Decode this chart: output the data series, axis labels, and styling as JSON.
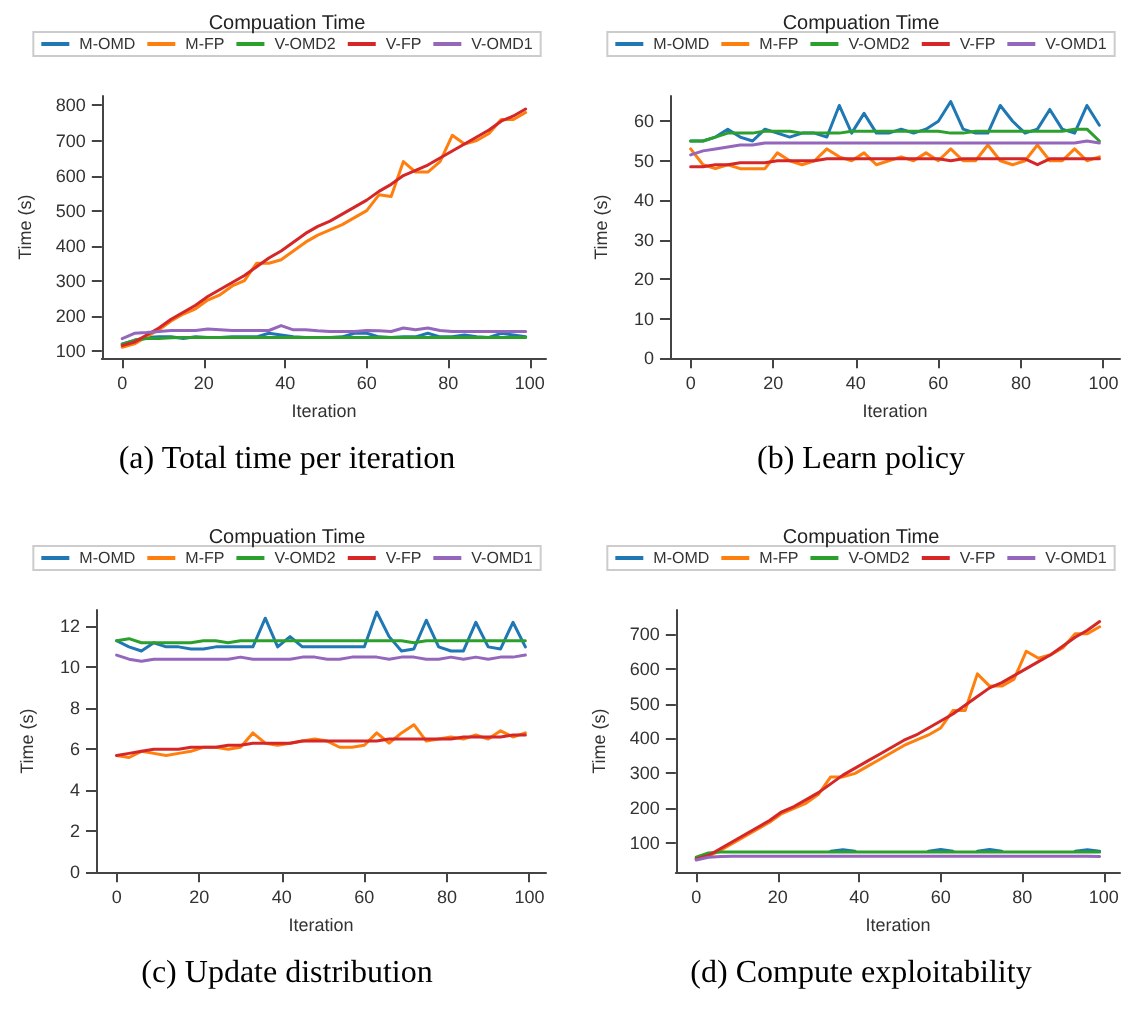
{
  "chart_data": [
    {
      "type": "line",
      "title": "Compuation Time",
      "xlabel": "Iteration",
      "ylabel": "Time (s)",
      "annotations": [
        "(a) Total time per iteration"
      ],
      "legend": "top",
      "grid": false,
      "marker": "none",
      "line_style": "solid",
      "xlim": [
        -5,
        104
      ],
      "xticks": [
        0,
        20,
        40,
        60,
        80,
        100
      ],
      "ylim": [
        79,
        827
      ],
      "yticks": [
        100,
        200,
        300,
        400,
        500,
        600,
        700,
        800
      ],
      "x": [
        0,
        3,
        6,
        9,
        12,
        15,
        18,
        21,
        24,
        27,
        30,
        33,
        36,
        39,
        42,
        45,
        48,
        51,
        54,
        57,
        60,
        63,
        66,
        69,
        72,
        75,
        78,
        81,
        84,
        87,
        90,
        93,
        96,
        99
      ],
      "series": [
        {
          "name": "M-OMD",
          "color": "#1f77b4",
          "values": [
            120,
            130,
            138,
            140,
            140,
            135,
            140,
            138,
            138,
            140,
            140,
            140,
            150,
            145,
            140,
            138,
            138,
            138,
            140,
            150,
            150,
            140,
            138,
            140,
            140,
            150,
            140,
            140,
            145,
            140,
            138,
            150,
            145,
            140
          ]
        },
        {
          "name": "M-FP",
          "color": "#ff7f0e",
          "values": [
            110,
            120,
            140,
            160,
            185,
            205,
            220,
            245,
            260,
            285,
            300,
            350,
            350,
            360,
            385,
            410,
            430,
            445,
            460,
            480,
            500,
            545,
            540,
            640,
            610,
            610,
            640,
            715,
            690,
            700,
            720,
            760,
            760,
            780
          ]
        },
        {
          "name": "V-OMD2",
          "color": "#2ca02c",
          "values": [
            118,
            130,
            135,
            135,
            137,
            138,
            138,
            138,
            138,
            138,
            138,
            138,
            138,
            138,
            138,
            138,
            138,
            138,
            138,
            138,
            138,
            138,
            138,
            138,
            138,
            138,
            138,
            138,
            138,
            138,
            138,
            138,
            138,
            138
          ]
        },
        {
          "name": "V-FP",
          "color": "#d62728",
          "values": [
            115,
            125,
            145,
            165,
            190,
            210,
            230,
            255,
            275,
            295,
            315,
            340,
            365,
            385,
            410,
            435,
            455,
            470,
            490,
            510,
            530,
            555,
            575,
            600,
            615,
            630,
            650,
            670,
            690,
            710,
            730,
            755,
            770,
            790
          ]
        },
        {
          "name": "V-OMD1",
          "color": "#9467bd",
          "values": [
            135,
            150,
            152,
            155,
            158,
            158,
            158,
            162,
            160,
            158,
            158,
            158,
            158,
            172,
            160,
            160,
            157,
            155,
            155,
            155,
            158,
            157,
            155,
            165,
            160,
            165,
            158,
            155,
            155,
            155,
            155,
            155,
            155,
            155
          ]
        }
      ]
    },
    {
      "type": "line",
      "title": "Compuation Time",
      "xlabel": "Iteration",
      "ylabel": "Time (s)",
      "annotations": [
        "(b) Learn policy"
      ],
      "legend": "top",
      "grid": false,
      "marker": "none",
      "line_style": "solid",
      "xlim": [
        -5,
        104
      ],
      "xticks": [
        0,
        20,
        40,
        60,
        80,
        100
      ],
      "ylim": [
        0,
        66.4
      ],
      "yticks": [
        0,
        10,
        20,
        30,
        40,
        50,
        60
      ],
      "x": [
        0,
        3,
        6,
        9,
        12,
        15,
        18,
        21,
        24,
        27,
        30,
        33,
        36,
        39,
        42,
        45,
        48,
        51,
        54,
        57,
        60,
        63,
        66,
        69,
        72,
        75,
        78,
        81,
        84,
        87,
        90,
        93,
        96,
        99
      ],
      "series": [
        {
          "name": "M-OMD",
          "color": "#1f77b4",
          "values": [
            55,
            55,
            56,
            58,
            56,
            55,
            58,
            57,
            56,
            57,
            57,
            56,
            64,
            57,
            62,
            57,
            57,
            58,
            57,
            58,
            60,
            65,
            58,
            57,
            57,
            64,
            60,
            57,
            58,
            63,
            58,
            57,
            64,
            59
          ]
        },
        {
          "name": "M-FP",
          "color": "#ff7f0e",
          "values": [
            53,
            49,
            48,
            49,
            48,
            48,
            48,
            52,
            50,
            49,
            50,
            53,
            51,
            50,
            52,
            49,
            50,
            51,
            50,
            52,
            50,
            53,
            50,
            50,
            54,
            50,
            49,
            50,
            54,
            50,
            50,
            53,
            50,
            51
          ]
        },
        {
          "name": "V-OMD2",
          "color": "#2ca02c",
          "values": [
            55,
            55,
            56,
            57,
            57,
            57,
            57.5,
            57.5,
            57.5,
            57,
            57,
            57,
            57,
            57.5,
            57.5,
            57.5,
            57.5,
            57.5,
            57.5,
            57.5,
            57.5,
            57,
            57,
            57.5,
            57.5,
            57.5,
            57.5,
            57.5,
            57.5,
            57.5,
            57.5,
            58,
            58,
            55
          ]
        },
        {
          "name": "V-FP",
          "color": "#d62728",
          "values": [
            48.5,
            48.5,
            49,
            49,
            49.5,
            49.5,
            49.5,
            50,
            50,
            50,
            50,
            50.5,
            50.5,
            50.5,
            50.5,
            50.5,
            50.5,
            50.5,
            50.5,
            50.5,
            50.5,
            50,
            50.5,
            50.5,
            50.5,
            50.5,
            50.5,
            50.5,
            49,
            50.5,
            50.5,
            50.5,
            50.5,
            50.5
          ]
        },
        {
          "name": "V-OMD1",
          "color": "#9467bd",
          "values": [
            51.5,
            52.5,
            53,
            53.5,
            54,
            54,
            54.5,
            54.5,
            54.5,
            54.5,
            54.5,
            54.5,
            54.5,
            54.5,
            54.5,
            54.5,
            54.5,
            54.5,
            54.5,
            54.5,
            54.5,
            54.5,
            54.5,
            54.5,
            54.5,
            54.5,
            54.5,
            54.5,
            54.5,
            54.5,
            54.5,
            54.5,
            55,
            54.5
          ]
        }
      ]
    },
    {
      "type": "line",
      "title": "Compuation Time",
      "xlabel": "Iteration",
      "ylabel": "Time (s)",
      "annotations": [
        "(c) Update distribution"
      ],
      "legend": "top",
      "grid": false,
      "marker": "none",
      "line_style": "solid",
      "xlim": [
        -5,
        104
      ],
      "xticks": [
        0,
        20,
        40,
        60,
        80,
        100
      ],
      "ylim": [
        0,
        12.8
      ],
      "yticks": [
        0,
        2,
        4,
        6,
        8,
        10,
        12
      ],
      "x": [
        0,
        3,
        6,
        9,
        12,
        15,
        18,
        21,
        24,
        27,
        30,
        33,
        36,
        39,
        42,
        45,
        48,
        51,
        54,
        57,
        60,
        63,
        66,
        69,
        72,
        75,
        78,
        81,
        84,
        87,
        90,
        93,
        96,
        99
      ],
      "series": [
        {
          "name": "M-OMD",
          "color": "#1f77b4",
          "values": [
            11.3,
            11,
            10.8,
            11.2,
            11,
            11,
            10.9,
            10.9,
            11,
            11,
            11,
            11,
            12.4,
            11,
            11.5,
            11,
            11,
            11,
            11,
            11,
            11,
            12.7,
            11.5,
            10.8,
            10.9,
            12.3,
            11,
            10.8,
            10.8,
            12.2,
            11,
            10.9,
            12.2,
            11
          ]
        },
        {
          "name": "M-FP",
          "color": "#ff7f0e",
          "values": [
            5.7,
            5.6,
            5.9,
            5.8,
            5.7,
            5.8,
            5.9,
            6.1,
            6.1,
            6,
            6.1,
            6.8,
            6.3,
            6.2,
            6.3,
            6.4,
            6.5,
            6.4,
            6.1,
            6.1,
            6.2,
            6.8,
            6.3,
            6.8,
            7.2,
            6.4,
            6.5,
            6.6,
            6.5,
            6.7,
            6.5,
            6.9,
            6.6,
            6.8
          ]
        },
        {
          "name": "V-OMD2",
          "color": "#2ca02c",
          "values": [
            11.3,
            11.4,
            11.2,
            11.2,
            11.2,
            11.2,
            11.2,
            11.3,
            11.3,
            11.2,
            11.3,
            11.3,
            11.3,
            11.3,
            11.3,
            11.3,
            11.3,
            11.3,
            11.3,
            11.3,
            11.3,
            11.3,
            11.3,
            11.3,
            11.2,
            11.3,
            11.3,
            11.3,
            11.3,
            11.3,
            11.3,
            11.3,
            11.3,
            11.3
          ]
        },
        {
          "name": "V-FP",
          "color": "#d62728",
          "values": [
            5.7,
            5.8,
            5.9,
            6,
            6,
            6,
            6.1,
            6.1,
            6.1,
            6.2,
            6.2,
            6.3,
            6.3,
            6.3,
            6.3,
            6.4,
            6.4,
            6.4,
            6.4,
            6.4,
            6.4,
            6.4,
            6.5,
            6.5,
            6.5,
            6.5,
            6.5,
            6.5,
            6.6,
            6.6,
            6.6,
            6.6,
            6.7,
            6.7
          ]
        },
        {
          "name": "V-OMD1",
          "color": "#9467bd",
          "values": [
            10.6,
            10.4,
            10.3,
            10.4,
            10.4,
            10.4,
            10.4,
            10.4,
            10.4,
            10.4,
            10.5,
            10.4,
            10.4,
            10.4,
            10.4,
            10.5,
            10.5,
            10.4,
            10.4,
            10.5,
            10.5,
            10.5,
            10.4,
            10.5,
            10.5,
            10.4,
            10.4,
            10.5,
            10.4,
            10.5,
            10.4,
            10.5,
            10.5,
            10.6
          ]
        }
      ]
    },
    {
      "type": "line",
      "title": "Compuation Time",
      "xlabel": "Iteration",
      "ylabel": "Time (s)",
      "annotations": [
        "(d) Compute exploitability"
      ],
      "legend": "top",
      "grid": false,
      "marker": "none",
      "line_style": "solid",
      "xlim": [
        -5,
        104
      ],
      "xticks": [
        0,
        20,
        40,
        60,
        80,
        100
      ],
      "ylim": [
        17,
        768
      ],
      "yticks": [
        100,
        200,
        300,
        400,
        500,
        600,
        700
      ],
      "x": [
        0,
        3,
        6,
        9,
        12,
        15,
        18,
        21,
        24,
        27,
        30,
        33,
        36,
        39,
        42,
        45,
        48,
        51,
        54,
        57,
        60,
        63,
        66,
        69,
        72,
        75,
        78,
        81,
        84,
        87,
        90,
        93,
        96,
        99
      ],
      "series": [
        {
          "name": "M-OMD",
          "color": "#1f77b4",
          "x": [
            33,
            36,
            39,
            40,
            57,
            60,
            63,
            64,
            69,
            72,
            75,
            76,
            93,
            96,
            99
          ],
          "values": [
            77,
            81,
            77,
            null,
            77,
            82,
            77,
            null,
            77,
            82,
            77,
            null,
            77,
            81,
            77
          ]
        },
        {
          "name": "M-FP",
          "color": "#ff7f0e",
          "values": [
            55,
            62,
            80,
            100,
            120,
            140,
            160,
            185,
            200,
            215,
            240,
            290,
            290,
            300,
            320,
            340,
            360,
            380,
            395,
            410,
            430,
            480,
            480,
            585,
            550,
            550,
            570,
            650,
            630,
            640,
            660,
            700,
            700,
            720
          ]
        },
        {
          "name": "V-OMD2",
          "color": "#2ca02c",
          "values": [
            60,
            72,
            75,
            75,
            75,
            75,
            75,
            75,
            75,
            75,
            75,
            75,
            75,
            75,
            75,
            75,
            75,
            75,
            75,
            75,
            75,
            75,
            75,
            75,
            75,
            75,
            75,
            75,
            75,
            75,
            75,
            75,
            75,
            75
          ]
        },
        {
          "name": "V-FP",
          "color": "#d62728",
          "values": [
            55,
            65,
            85,
            105,
            125,
            145,
            165,
            190,
            205,
            225,
            245,
            270,
            295,
            315,
            335,
            355,
            375,
            395,
            410,
            430,
            450,
            470,
            495,
            520,
            545,
            560,
            580,
            600,
            620,
            640,
            665,
            690,
            710,
            735
          ]
        },
        {
          "name": "V-OMD1",
          "color": "#9467bd",
          "values": [
            52,
            60,
            62,
            63,
            63,
            63,
            63,
            63,
            63,
            63,
            63,
            63,
            63,
            63,
            63,
            63,
            63,
            63,
            63,
            63,
            63,
            63,
            63,
            63,
            63,
            63,
            63,
            63,
            63,
            63,
            63,
            63,
            63,
            62
          ]
        }
      ]
    }
  ]
}
